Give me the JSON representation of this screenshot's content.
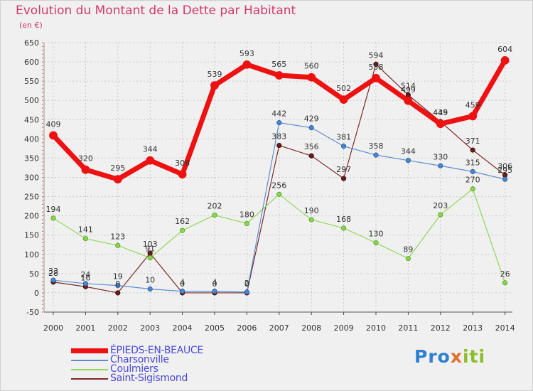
{
  "title": "Evolution du Montant de la Dette par Habitant",
  "subtitle": "(en €)",
  "logo": {
    "part1": "Pro",
    "part2": "x",
    "part3": "iti"
  },
  "chart_data": {
    "type": "line",
    "x": [
      "2000",
      "2001",
      "2002",
      "2003",
      "2004",
      "2005",
      "2006",
      "2007",
      "2008",
      "2009",
      "2010",
      "2011",
      "2012",
      "2013",
      "2014"
    ],
    "ylim": [
      -50,
      650
    ],
    "yticks": [
      -50,
      0,
      50,
      100,
      150,
      200,
      250,
      300,
      350,
      400,
      450,
      500,
      550,
      600,
      650
    ],
    "grid": true,
    "legend_position": "bottom-left",
    "series": [
      {
        "name": "ÉPIEDS-EN-BEAUCE",
        "color": "#ee1111",
        "values": [
          409,
          320,
          295,
          344,
          308,
          539,
          593,
          565,
          560,
          502,
          558,
          499,
          439,
          459,
          604
        ]
      },
      {
        "name": "Charsonville",
        "color": "#5b8ed0",
        "values": [
          33,
          24,
          19,
          10,
          4,
          4,
          2,
          442,
          429,
          381,
          358,
          344,
          330,
          315,
          295
        ]
      },
      {
        "name": "Coulmiers",
        "color": "#90d85a",
        "values": [
          194,
          141,
          123,
          91,
          162,
          202,
          180,
          256,
          190,
          168,
          130,
          89,
          203,
          270,
          26
        ]
      },
      {
        "name": "Saint-Sigismond",
        "color": "#7a2a2a",
        "values": [
          28,
          16,
          0,
          103,
          0,
          0,
          0,
          383,
          356,
          297,
          594,
          514,
          445,
          371,
          306
        ]
      }
    ]
  }
}
